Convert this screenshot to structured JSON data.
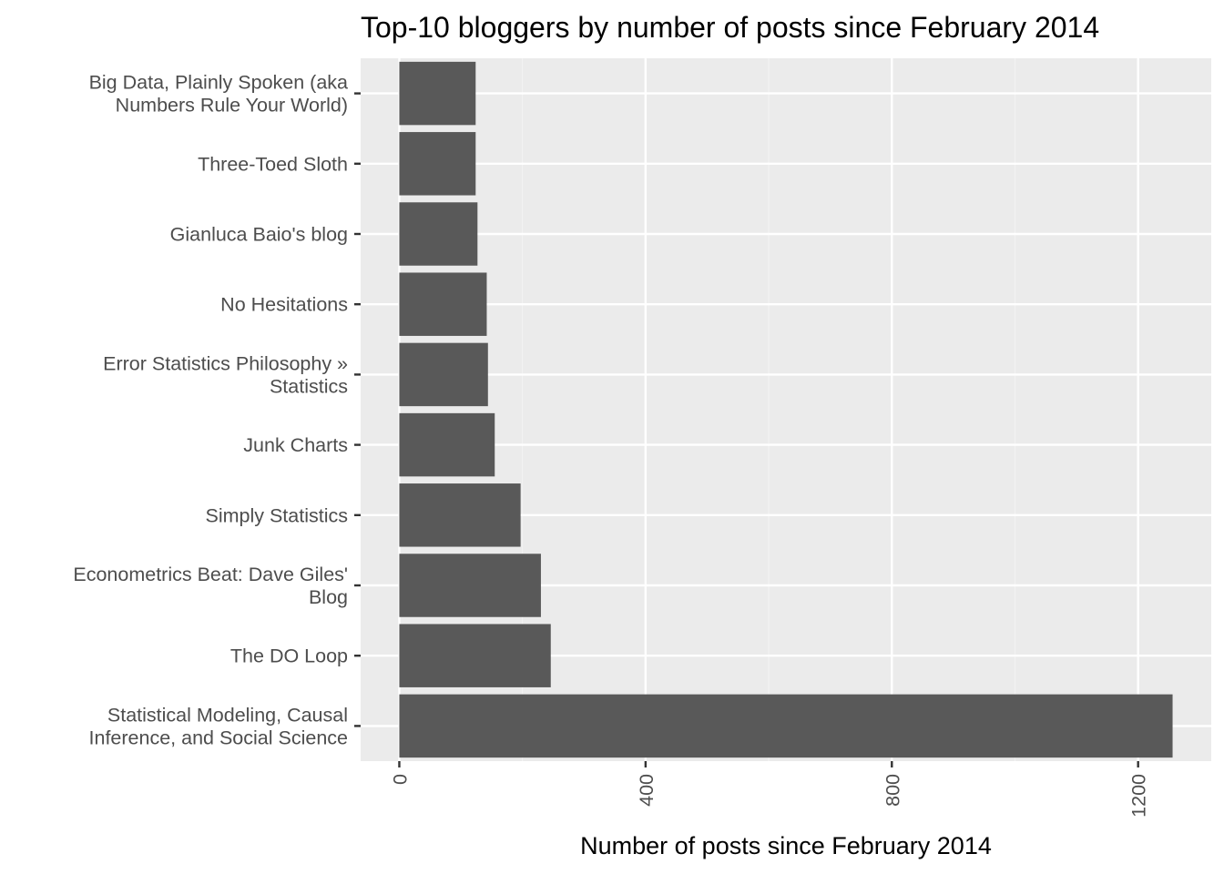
{
  "chart_data": {
    "type": "bar",
    "orientation": "horizontal",
    "title": "Top-10 bloggers by number of posts since February 2014",
    "xlabel": "Number of posts since February 2014",
    "ylabel": "",
    "categories": [
      [
        "Big Data, Plainly Spoken (aka",
        "Numbers Rule Your World)"
      ],
      [
        "Three-Toed Sloth"
      ],
      [
        "Gianluca Baio's blog"
      ],
      [
        "No Hesitations"
      ],
      [
        "Error Statistics Philosophy »",
        "Statistics"
      ],
      [
        "Junk Charts"
      ],
      [
        "Simply Statistics"
      ],
      [
        "Econometrics Beat: Dave Giles'",
        "Blog"
      ],
      [
        "The DO Loop"
      ],
      [
        "Statistical Modeling, Causal",
        "Inference, and Social Science"
      ]
    ],
    "values": [
      124,
      124,
      127,
      142,
      144,
      155,
      197,
      230,
      246,
      1256
    ],
    "xlim": [
      -62.8,
      1318.8
    ],
    "xticks": [
      0,
      400,
      800,
      1200
    ],
    "xtick_labels": [
      "0",
      "400",
      "800",
      "1200"
    ],
    "grid": true,
    "legend": "none",
    "colors": {
      "bar": "#595959",
      "panel": "#ebebeb",
      "grid_major": "#ffffff",
      "grid_minor": "#f2f2f2",
      "tick_text": "#4d4d4d",
      "tick_mark": "#333333"
    }
  }
}
